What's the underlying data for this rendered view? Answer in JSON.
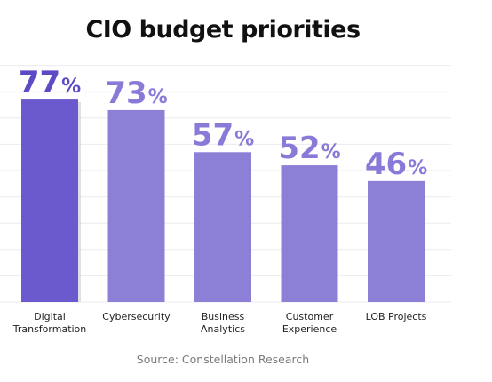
{
  "chart_data": {
    "type": "bar",
    "title": "CIO budget priorities",
    "source": "Source: Constellation Research",
    "categories": [
      [
        "Digital",
        "Transformation"
      ],
      [
        "Cybersecurity"
      ],
      [
        "Business",
        "Analytics"
      ],
      [
        "Customer",
        "Experience"
      ],
      [
        "LOB Projects"
      ]
    ],
    "values": [
      77,
      73,
      57,
      52,
      46
    ],
    "value_suffix": "%",
    "ylim": [
      0,
      100
    ],
    "grid": true,
    "colors": {
      "highlight_bar": "#6a5acd",
      "bar": "#8c80d6",
      "highlight_value": "#5b4bc4",
      "value": "#8a7ad8",
      "grid": "#ebebf0"
    },
    "highlight_index": 0
  }
}
